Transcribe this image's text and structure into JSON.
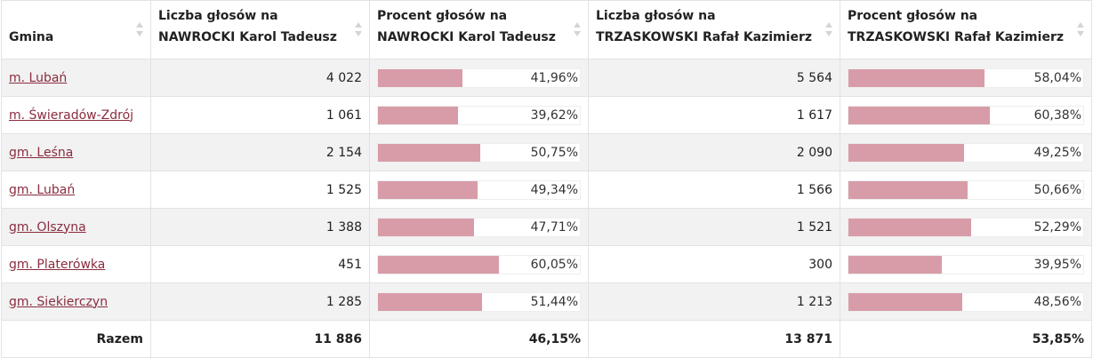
{
  "headers": {
    "gmina": "Gmina",
    "n_count": [
      "Liczba głosów na",
      "NAWROCKI Karol Tadeusz"
    ],
    "n_pct": [
      "Procent głosów na",
      "NAWROCKI Karol Tadeusz"
    ],
    "t_count": [
      "Liczba głosów na",
      "TRZASKOWSKI Rafał Kazimierz"
    ],
    "t_pct": [
      "Procent głosów na",
      "TRZASKOWSKI Rafał Kazimierz"
    ]
  },
  "rows": [
    {
      "gmina": "m. Lubań",
      "n_count": "4 022",
      "n_pct": "41,96%",
      "n_frac": 0.4196,
      "t_count": "5 564",
      "t_pct": "58,04%",
      "t_frac": 0.5804
    },
    {
      "gmina": "m. Świeradów-Zdrój",
      "n_count": "1 061",
      "n_pct": "39,62%",
      "n_frac": 0.3962,
      "t_count": "1 617",
      "t_pct": "60,38%",
      "t_frac": 0.6038
    },
    {
      "gmina": "gm. Leśna",
      "n_count": "2 154",
      "n_pct": "50,75%",
      "n_frac": 0.5075,
      "t_count": "2 090",
      "t_pct": "49,25%",
      "t_frac": 0.4925
    },
    {
      "gmina": "gm. Lubań",
      "n_count": "1 525",
      "n_pct": "49,34%",
      "n_frac": 0.4934,
      "t_count": "1 566",
      "t_pct": "50,66%",
      "t_frac": 0.5066
    },
    {
      "gmina": "gm. Olszyna",
      "n_count": "1 388",
      "n_pct": "47,71%",
      "n_frac": 0.4771,
      "t_count": "1 521",
      "t_pct": "52,29%",
      "t_frac": 0.5229
    },
    {
      "gmina": "gm. Platerówka",
      "n_count": "451",
      "n_pct": "60,05%",
      "n_frac": 0.6005,
      "t_count": "300",
      "t_pct": "39,95%",
      "t_frac": 0.3995
    },
    {
      "gmina": "gm. Siekierczyn",
      "n_count": "1 285",
      "n_pct": "51,44%",
      "n_frac": 0.5144,
      "t_count": "1 213",
      "t_pct": "48,56%",
      "t_frac": 0.4856
    }
  ],
  "total": {
    "label": "Razem",
    "n_count": "11 886",
    "n_pct": "46,15%",
    "t_count": "13 871",
    "t_pct": "53,85%"
  },
  "colors": {
    "bar": "#d89ca8",
    "link": "#8a2c3e",
    "stripe": "#f2f2f2"
  }
}
